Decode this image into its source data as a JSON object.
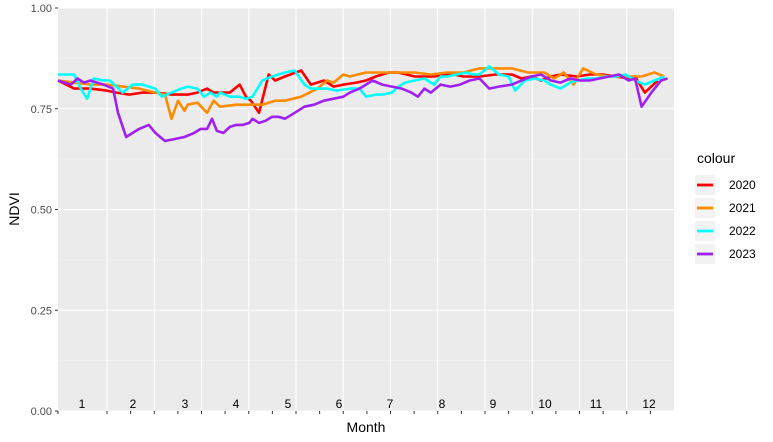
{
  "chart_data": {
    "type": "line",
    "xlabel": "Month",
    "ylabel": "NDVI",
    "ylim": [
      0,
      1
    ],
    "y_ticks": [
      0,
      0.25,
      0.5,
      0.75,
      1
    ],
    "y_tick_labels": [
      "0.00",
      "0.25",
      "0.50",
      "0.75",
      "1.00"
    ],
    "month_labels": [
      "1",
      "2",
      "3",
      "4",
      "5",
      "6",
      "7",
      "8",
      "9",
      "10",
      "11",
      "12"
    ],
    "grid": true,
    "legend": {
      "title": "colour",
      "position": "right"
    },
    "series": [
      {
        "name": "2020",
        "color": "#ff0000",
        "points": [
          [
            0,
            0.82
          ],
          [
            0.5,
            0.8
          ],
          [
            1,
            0.8
          ],
          [
            1.5,
            0.795
          ],
          [
            1.8,
            0.79
          ],
          [
            2.2,
            0.785
          ],
          [
            2.6,
            0.79
          ],
          [
            3,
            0.79
          ],
          [
            3.5,
            0.785
          ],
          [
            4,
            0.785
          ],
          [
            4.3,
            0.79
          ],
          [
            4.6,
            0.8
          ],
          [
            4.8,
            0.79
          ],
          [
            5,
            0.79
          ],
          [
            5.3,
            0.79
          ],
          [
            5.6,
            0.81
          ],
          [
            5.8,
            0.78
          ],
          [
            5.95,
            0.77
          ],
          [
            6.2,
            0.74
          ],
          [
            6.5,
            0.835
          ],
          [
            6.7,
            0.82
          ],
          [
            7,
            0.83
          ],
          [
            7.5,
            0.845
          ],
          [
            7.8,
            0.81
          ],
          [
            8.2,
            0.82
          ],
          [
            8.5,
            0.805
          ],
          [
            8.8,
            0.81
          ],
          [
            9.2,
            0.815
          ],
          [
            9.5,
            0.82
          ],
          [
            9.8,
            0.83
          ],
          [
            10.2,
            0.84
          ],
          [
            10.5,
            0.84
          ],
          [
            11,
            0.83
          ],
          [
            11.3,
            0.83
          ],
          [
            11.6,
            0.83
          ],
          [
            12,
            0.835
          ],
          [
            12.2,
            0.835
          ],
          [
            12.5,
            0.83
          ],
          [
            13,
            0.83
          ],
          [
            13.5,
            0.835
          ],
          [
            14,
            0.835
          ],
          [
            14.3,
            0.825
          ],
          [
            14.6,
            0.83
          ],
          [
            14.9,
            0.82
          ],
          [
            15.2,
            0.83
          ],
          [
            15.5,
            0.835
          ],
          [
            16,
            0.83
          ],
          [
            16.4,
            0.835
          ],
          [
            16.8,
            0.835
          ],
          [
            17.2,
            0.83
          ],
          [
            17.6,
            0.825
          ],
          [
            17.8,
            0.83
          ],
          [
            18.1,
            0.79
          ],
          [
            18.5,
            0.82
          ]
        ]
      },
      {
        "name": "2021",
        "color": "#ff8c00",
        "points": [
          [
            0,
            0.82
          ],
          [
            0.5,
            0.815
          ],
          [
            1,
            0.81
          ],
          [
            1.5,
            0.81
          ],
          [
            2,
            0.805
          ],
          [
            2.5,
            0.8
          ],
          [
            3,
            0.79
          ],
          [
            3.3,
            0.785
          ],
          [
            3.5,
            0.725
          ],
          [
            3.7,
            0.77
          ],
          [
            3.9,
            0.745
          ],
          [
            4,
            0.76
          ],
          [
            4.3,
            0.765
          ],
          [
            4.6,
            0.74
          ],
          [
            4.8,
            0.77
          ],
          [
            5,
            0.755
          ],
          [
            5.5,
            0.76
          ],
          [
            6,
            0.76
          ],
          [
            6.3,
            0.76
          ],
          [
            6.7,
            0.77
          ],
          [
            7,
            0.77
          ],
          [
            7.5,
            0.78
          ],
          [
            8,
            0.8
          ],
          [
            8.3,
            0.82
          ],
          [
            8.5,
            0.815
          ],
          [
            8.8,
            0.835
          ],
          [
            9,
            0.83
          ],
          [
            9.5,
            0.84
          ],
          [
            10,
            0.84
          ],
          [
            10.5,
            0.84
          ],
          [
            11,
            0.84
          ],
          [
            11.5,
            0.835
          ],
          [
            12,
            0.84
          ],
          [
            12.5,
            0.84
          ],
          [
            13,
            0.85
          ],
          [
            13.5,
            0.85
          ],
          [
            14,
            0.85
          ],
          [
            14.5,
            0.84
          ],
          [
            15,
            0.84
          ],
          [
            15.3,
            0.825
          ],
          [
            15.6,
            0.84
          ],
          [
            15.9,
            0.81
          ],
          [
            16.2,
            0.85
          ],
          [
            16.6,
            0.835
          ],
          [
            17,
            0.83
          ],
          [
            17.5,
            0.83
          ],
          [
            18,
            0.83
          ],
          [
            18.4,
            0.84
          ],
          [
            18.7,
            0.83
          ]
        ]
      },
      {
        "name": "2022",
        "color": "#00ffff",
        "points": [
          [
            0,
            0.835
          ],
          [
            0.5,
            0.835
          ],
          [
            0.7,
            0.8
          ],
          [
            0.9,
            0.775
          ],
          [
            1.1,
            0.825
          ],
          [
            1.4,
            0.82
          ],
          [
            1.6,
            0.82
          ],
          [
            2,
            0.79
          ],
          [
            2.3,
            0.81
          ],
          [
            2.6,
            0.81
          ],
          [
            3,
            0.8
          ],
          [
            3.2,
            0.78
          ],
          [
            3.5,
            0.79
          ],
          [
            3.8,
            0.8
          ],
          [
            4,
            0.805
          ],
          [
            4.3,
            0.8
          ],
          [
            4.5,
            0.78
          ],
          [
            4.7,
            0.79
          ],
          [
            4.9,
            0.78
          ],
          [
            5,
            0.79
          ],
          [
            5.3,
            0.78
          ],
          [
            5.6,
            0.78
          ],
          [
            5.8,
            0.775
          ],
          [
            6,
            0.78
          ],
          [
            6.3,
            0.82
          ],
          [
            6.6,
            0.83
          ],
          [
            7,
            0.84
          ],
          [
            7.3,
            0.845
          ],
          [
            7.6,
            0.81
          ],
          [
            7.8,
            0.8
          ],
          [
            8,
            0.8
          ],
          [
            8.3,
            0.8
          ],
          [
            8.6,
            0.795
          ],
          [
            9,
            0.8
          ],
          [
            9.3,
            0.8
          ],
          [
            9.5,
            0.78
          ],
          [
            9.8,
            0.785
          ],
          [
            10,
            0.785
          ],
          [
            10.3,
            0.79
          ],
          [
            10.5,
            0.805
          ],
          [
            10.7,
            0.815
          ],
          [
            11,
            0.82
          ],
          [
            11.3,
            0.825
          ],
          [
            11.6,
            0.81
          ],
          [
            11.8,
            0.83
          ],
          [
            12,
            0.83
          ],
          [
            12.3,
            0.835
          ],
          [
            12.6,
            0.84
          ],
          [
            12.8,
            0.835
          ],
          [
            13,
            0.835
          ],
          [
            13.3,
            0.855
          ],
          [
            13.6,
            0.835
          ],
          [
            13.9,
            0.83
          ],
          [
            14.1,
            0.795
          ],
          [
            14.4,
            0.82
          ],
          [
            14.7,
            0.825
          ],
          [
            15,
            0.82
          ],
          [
            15.2,
            0.81
          ],
          [
            15.5,
            0.8
          ],
          [
            15.8,
            0.815
          ],
          [
            16,
            0.82
          ],
          [
            16.3,
            0.825
          ],
          [
            16.6,
            0.825
          ],
          [
            16.9,
            0.83
          ],
          [
            17.2,
            0.83
          ],
          [
            17.5,
            0.835
          ],
          [
            17.8,
            0.82
          ],
          [
            18.1,
            0.81
          ],
          [
            18.4,
            0.82
          ],
          [
            18.7,
            0.83
          ]
        ]
      },
      {
        "name": "2023",
        "color": "#a020f0",
        "points": [
          [
            0,
            0.82
          ],
          [
            0.4,
            0.81
          ],
          [
            0.6,
            0.825
          ],
          [
            0.8,
            0.815
          ],
          [
            1,
            0.82
          ],
          [
            1.4,
            0.81
          ],
          [
            1.7,
            0.8
          ],
          [
            1.85,
            0.74
          ],
          [
            2.1,
            0.68
          ],
          [
            2.5,
            0.7
          ],
          [
            2.8,
            0.71
          ],
          [
            3,
            0.69
          ],
          [
            3.3,
            0.67
          ],
          [
            3.6,
            0.675
          ],
          [
            3.9,
            0.68
          ],
          [
            4.2,
            0.69
          ],
          [
            4.4,
            0.7
          ],
          [
            4.6,
            0.7
          ],
          [
            4.75,
            0.725
          ],
          [
            4.9,
            0.695
          ],
          [
            5.1,
            0.69
          ],
          [
            5.3,
            0.705
          ],
          [
            5.5,
            0.71
          ],
          [
            5.7,
            0.71
          ],
          [
            5.9,
            0.715
          ],
          [
            6,
            0.725
          ],
          [
            6.2,
            0.715
          ],
          [
            6.4,
            0.72
          ],
          [
            6.6,
            0.73
          ],
          [
            6.8,
            0.73
          ],
          [
            7,
            0.725
          ],
          [
            7.3,
            0.74
          ],
          [
            7.6,
            0.755
          ],
          [
            7.9,
            0.76
          ],
          [
            8.2,
            0.77
          ],
          [
            8.5,
            0.775
          ],
          [
            8.8,
            0.78
          ],
          [
            9,
            0.79
          ],
          [
            9.3,
            0.8
          ],
          [
            9.5,
            0.81
          ],
          [
            9.7,
            0.82
          ],
          [
            10,
            0.81
          ],
          [
            10.3,
            0.805
          ],
          [
            10.6,
            0.8
          ],
          [
            10.9,
            0.79
          ],
          [
            11.1,
            0.78
          ],
          [
            11.3,
            0.8
          ],
          [
            11.5,
            0.79
          ],
          [
            11.8,
            0.81
          ],
          [
            12.1,
            0.805
          ],
          [
            12.4,
            0.81
          ],
          [
            12.7,
            0.82
          ],
          [
            13,
            0.825
          ],
          [
            13.3,
            0.8
          ],
          [
            13.6,
            0.805
          ],
          [
            14,
            0.81
          ],
          [
            14.3,
            0.82
          ],
          [
            14.6,
            0.83
          ],
          [
            14.9,
            0.835
          ],
          [
            15.2,
            0.82
          ],
          [
            15.5,
            0.815
          ],
          [
            15.8,
            0.825
          ],
          [
            16.1,
            0.82
          ],
          [
            16.4,
            0.82
          ],
          [
            16.7,
            0.825
          ],
          [
            17,
            0.83
          ],
          [
            17.3,
            0.835
          ],
          [
            17.6,
            0.82
          ],
          [
            17.8,
            0.825
          ],
          [
            18,
            0.755
          ],
          [
            18.3,
            0.79
          ],
          [
            18.6,
            0.82
          ],
          [
            18.8,
            0.825
          ]
        ]
      }
    ]
  }
}
